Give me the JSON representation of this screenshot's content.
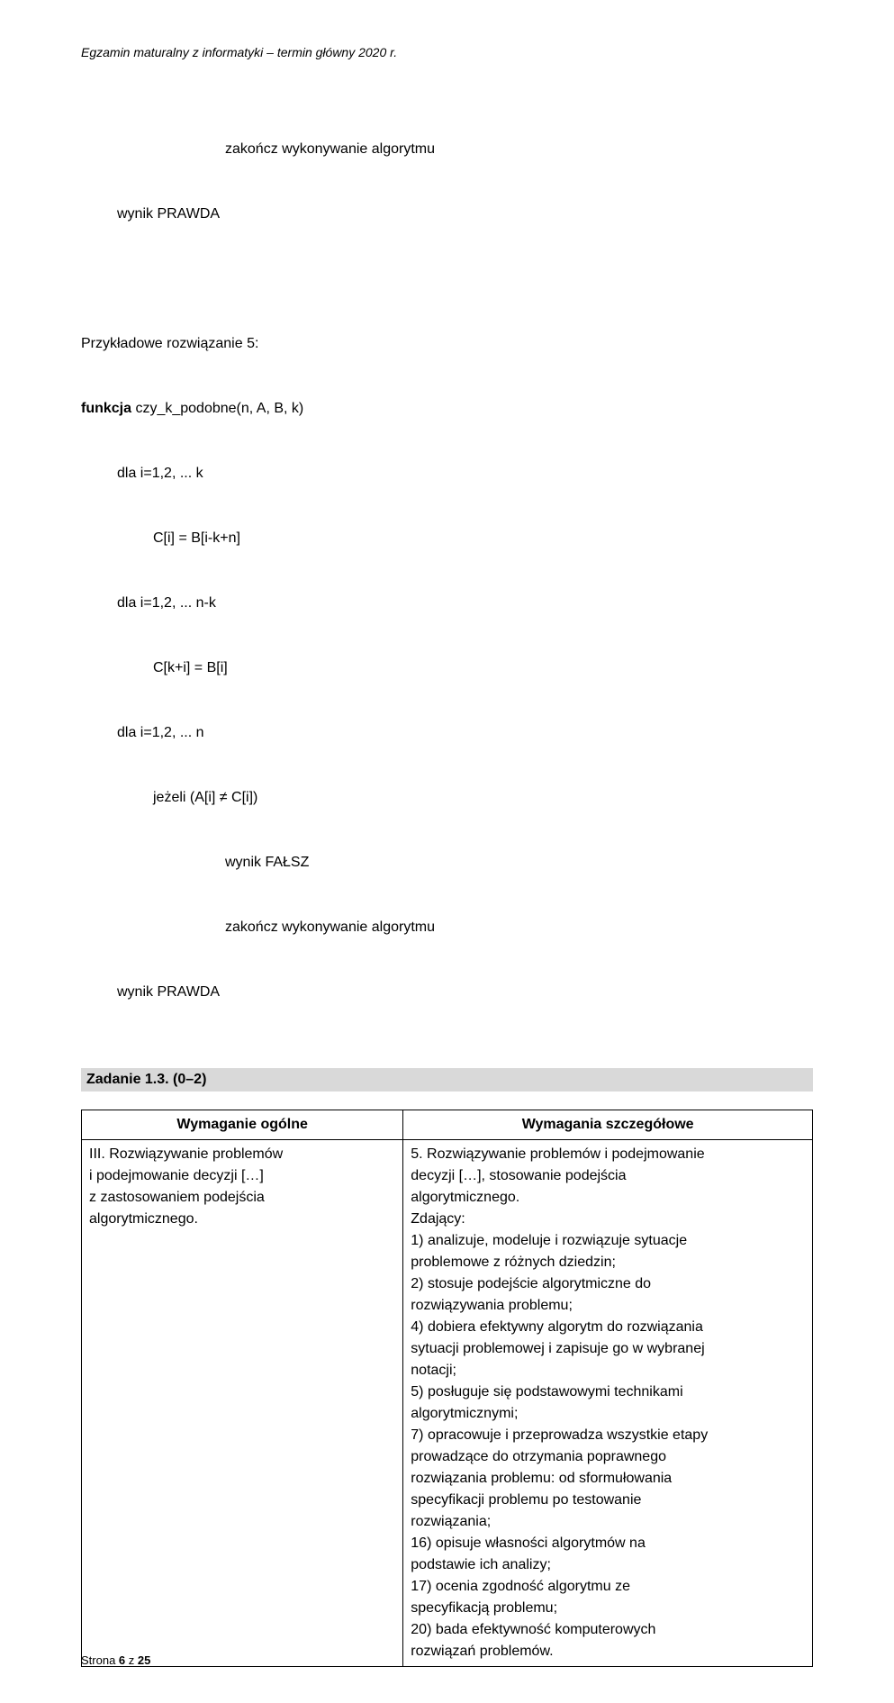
{
  "header": {
    "text": "Egzamin maturalny z informatyki – termin główny 2020 r."
  },
  "code_block_1": {
    "line1": "zakończ wykonywanie algorytmu",
    "line2": "wynik PRAWDA"
  },
  "code_block_2": {
    "title": "Przykładowe rozwiązanie 5:",
    "sig_kw": "funkcja",
    "sig_rest": " czy_k_podobne(n, A, B, k)",
    "l1": "dla i=1,2, ... k",
    "l2": "C[i] = B[i-k+n]",
    "l3": "dla i=1,2, ... n-k",
    "l4": "C[k+i] = B[i]",
    "l5": "dla i=1,2, ... n",
    "l6": "jeżeli (A[i] ≠ C[i])",
    "l7": "wynik FAŁSZ",
    "l8": "zakończ wykonywanie algorytmu",
    "l9": "wynik PRAWDA"
  },
  "section": {
    "title": "Zadanie 1.3. (0–2)"
  },
  "table": {
    "col1_header": "Wymaganie ogólne",
    "col2_header": "Wymagania szczegółowe",
    "col1_lines": [
      "III. Rozwiązywanie problemów",
      "i podejmowanie decyzji […]",
      "z zastosowaniem podejścia",
      "algorytmicznego."
    ],
    "col2_lines": [
      "5. Rozwiązywanie problemów i podejmowanie",
      "decyzji […], stosowanie podejścia",
      "algorytmicznego.",
      "Zdający:",
      "1) analizuje, modeluje i rozwiązuje sytuacje",
      "problemowe z różnych dziedzin;",
      "2) stosuje podejście algorytmiczne do",
      "rozwiązywania problemu;",
      "4) dobiera efektywny algorytm do rozwiązania",
      "sytuacji problemowej i zapisuje go w wybranej",
      "notacji;",
      "5) posługuje się podstawowymi technikami",
      "algorytmicznymi;",
      "7) opracowuje i przeprowadza wszystkie etapy",
      "prowadzące do otrzymania poprawnego",
      "rozwiązania problemu: od sformułowania",
      "specyfikacji problemu po testowanie",
      "rozwiązania;",
      "16) opisuje własności algorytmów na",
      "podstawie ich analizy;",
      "17) ocenia zgodność algorytmu ze",
      "specyfikacją problemu;",
      "20) bada efektywność komputerowych",
      "rozwiązań problemów."
    ],
    "col_width_left": "44%",
    "col_width_right": "56%"
  },
  "footer": {
    "prefix": "Strona ",
    "page": "6",
    "middle": " z ",
    "total": "25"
  },
  "colors": {
    "page_bg": "#ffffff",
    "text": "#000000",
    "heading_bg": "#d9d9d9",
    "border": "#000000"
  },
  "typography": {
    "body_fontsize": 16,
    "header_fontsize": 14,
    "footer_fontsize": 13,
    "font_family": "Arial"
  }
}
